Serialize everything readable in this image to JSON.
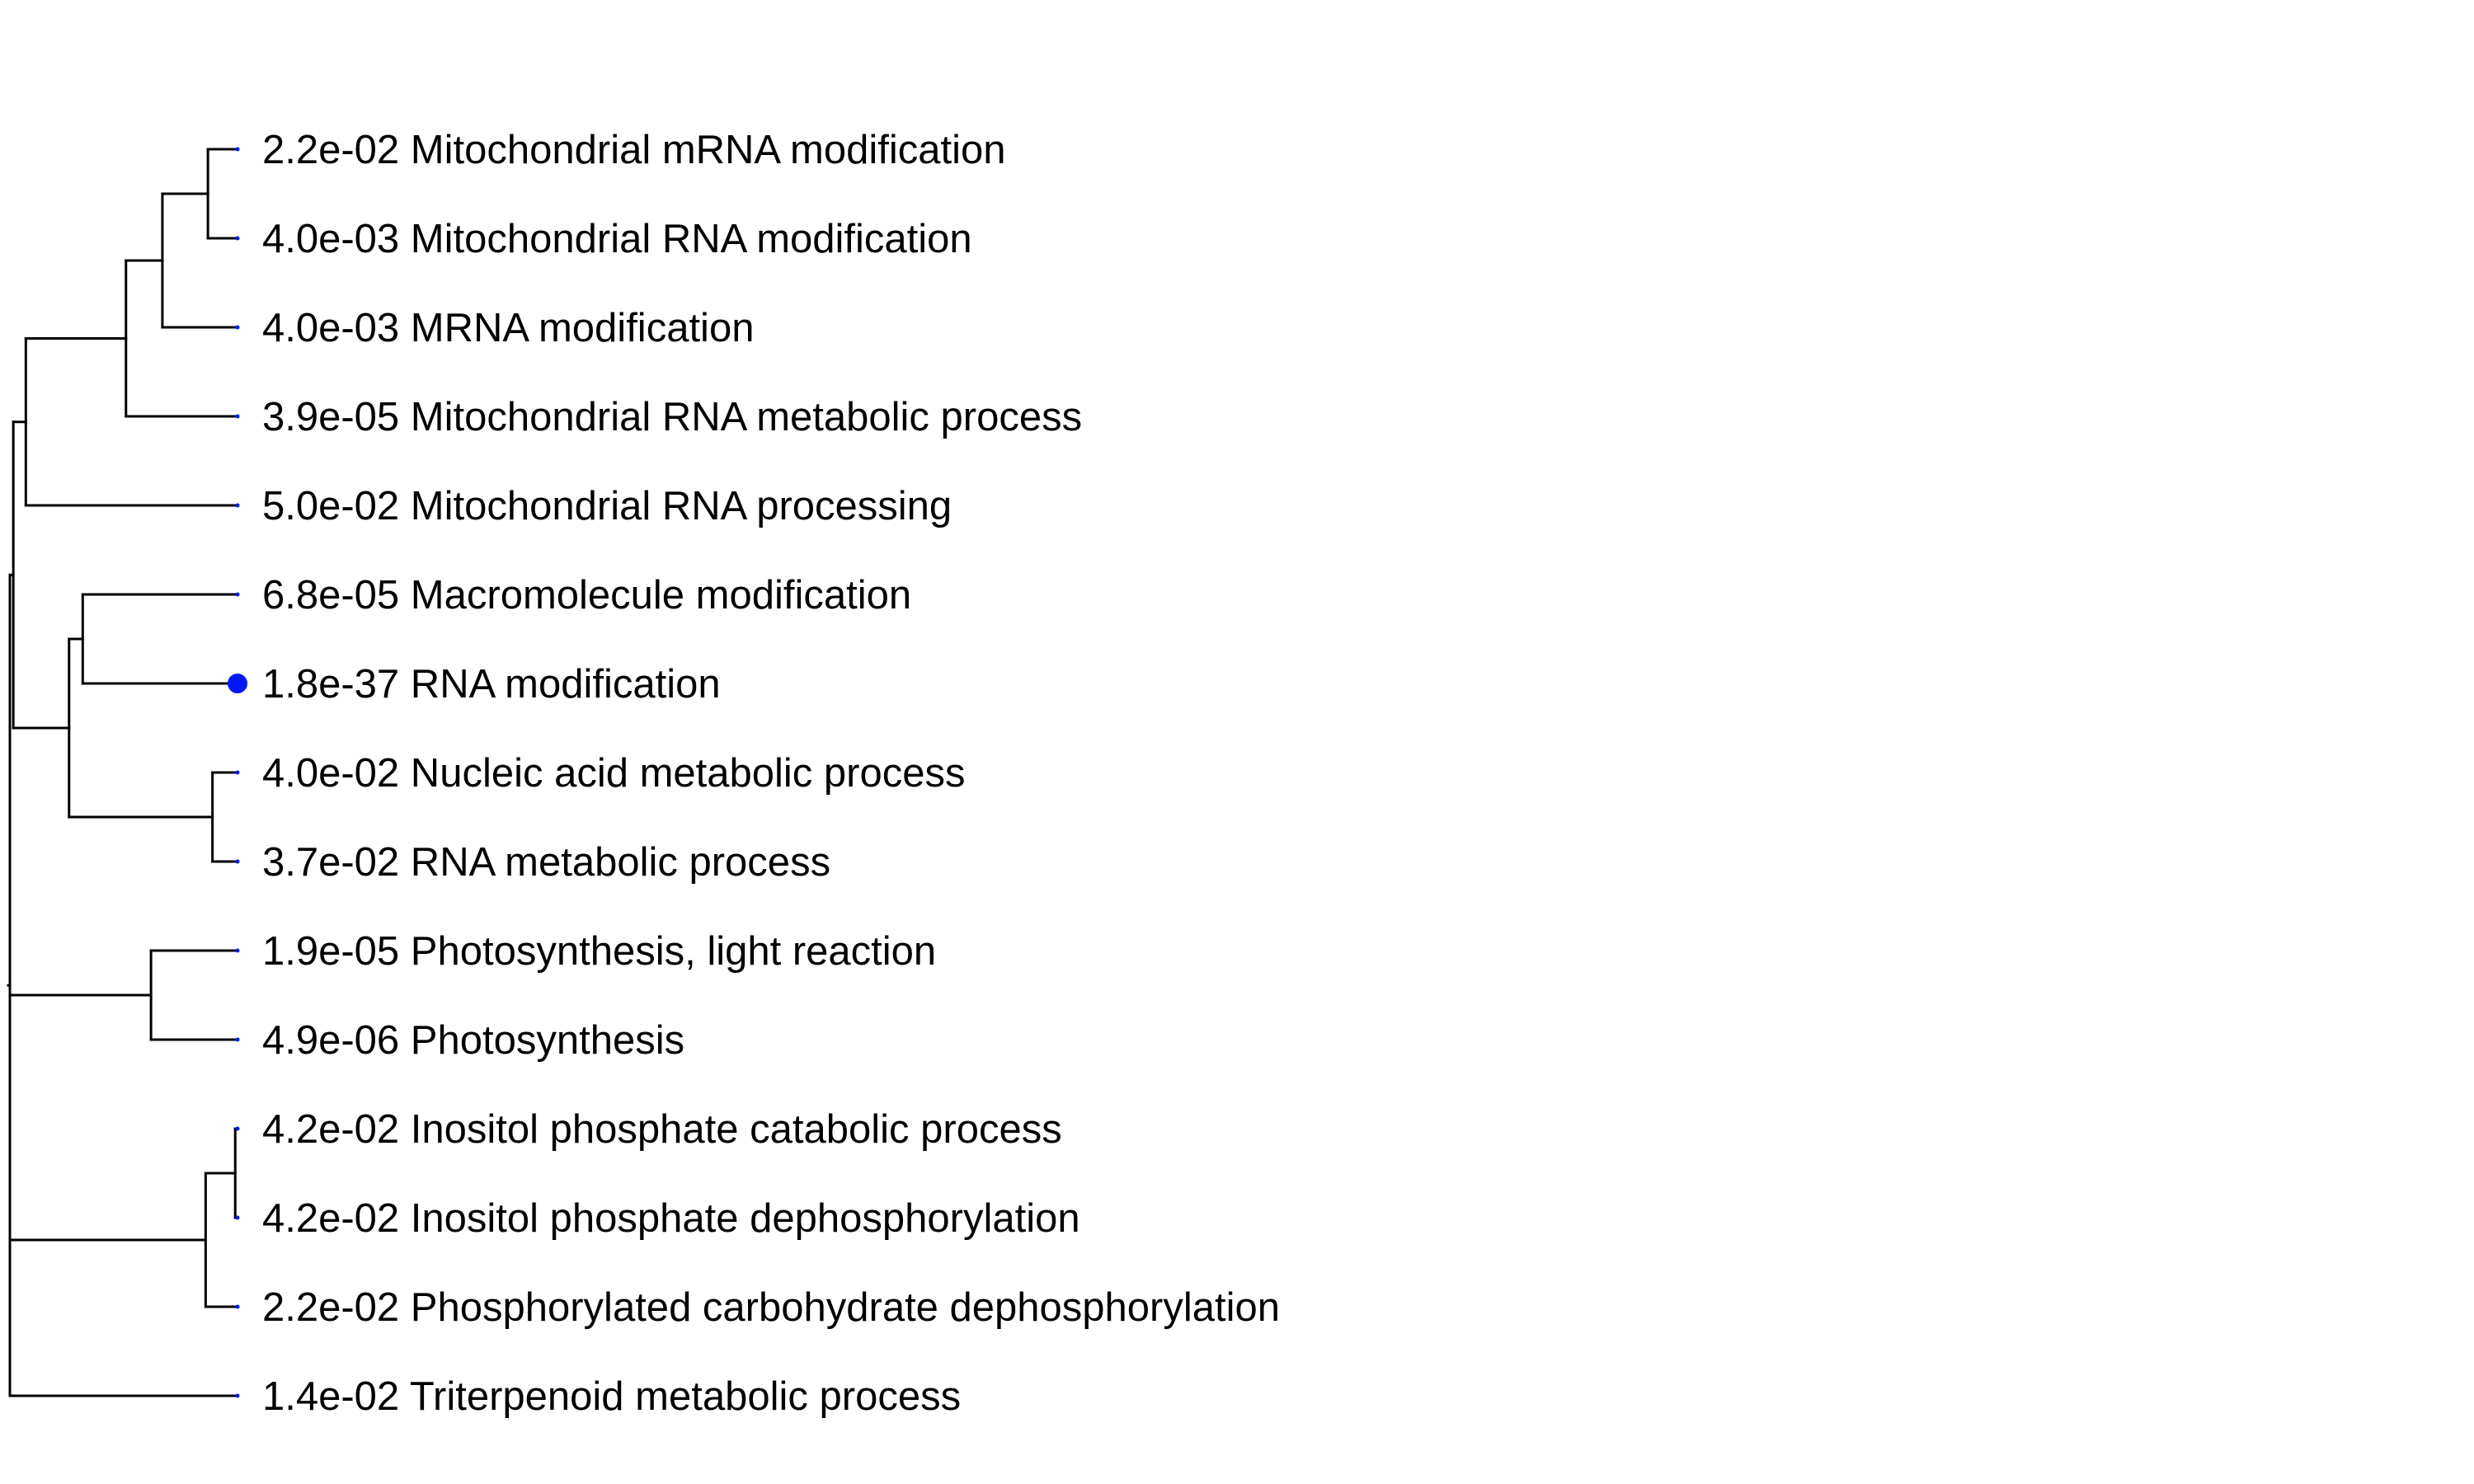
{
  "colors": {
    "branch": "#000000",
    "tip": "#0019f2",
    "text": "#000000",
    "background": "#ffffff"
  },
  "leaves": [
    {
      "id": "L1",
      "pvalue": "2.2e-02",
      "term": "Mitochondrial mRNA modification",
      "p": 0.022
    },
    {
      "id": "L2",
      "pvalue": "4.0e-03",
      "term": "Mitochondrial RNA modification",
      "p": 0.004
    },
    {
      "id": "L3",
      "pvalue": "4.0e-03",
      "term": "MRNA modification",
      "p": 0.004
    },
    {
      "id": "L4",
      "pvalue": "3.9e-05",
      "term": "Mitochondrial RNA metabolic process",
      "p": 3.9e-05
    },
    {
      "id": "L5",
      "pvalue": "5.0e-02",
      "term": "Mitochondrial RNA processing",
      "p": 0.05
    },
    {
      "id": "L6",
      "pvalue": "6.8e-05",
      "term": "Macromolecule modification",
      "p": 6.8e-05
    },
    {
      "id": "L7",
      "pvalue": "1.8e-37",
      "term": "RNA modification",
      "p": 1.8e-37
    },
    {
      "id": "L8",
      "pvalue": "4.0e-02",
      "term": "Nucleic acid metabolic process",
      "p": 0.04
    },
    {
      "id": "L9",
      "pvalue": "3.7e-02",
      "term": "RNA metabolic process",
      "p": 0.037
    },
    {
      "id": "L10",
      "pvalue": "1.9e-05",
      "term": "Photosynthesis, light reaction",
      "p": 1.9e-05
    },
    {
      "id": "L11",
      "pvalue": "4.9e-06",
      "term": "Photosynthesis",
      "p": 4.9e-06
    },
    {
      "id": "L12",
      "pvalue": "4.2e-02",
      "term": "Inositol phosphate catabolic process",
      "p": 0.042
    },
    {
      "id": "L13",
      "pvalue": "4.2e-02",
      "term": "Inositol phosphate dephosphorylation",
      "p": 0.042
    },
    {
      "id": "L14",
      "pvalue": "2.2e-02",
      "term": "Phosphorylated carbohydrate dephosphorylation",
      "p": 0.022
    },
    {
      "id": "L15",
      "pvalue": "1.4e-02",
      "term": "Triterpenoid metabolic process",
      "p": 0.014
    }
  ],
  "tree": {
    "height": 1.0,
    "children": [
      {
        "height": 0.985,
        "children": [
          {
            "height": 0.93,
            "children": [
              {
                "height": 0.49,
                "children": [
                  {
                    "height": 0.33,
                    "children": [
                      {
                        "height": 0.13,
                        "children": [
                          {
                            "leaf": "L1"
                          },
                          {
                            "leaf": "L2"
                          }
                        ]
                      },
                      {
                        "leaf": "L3"
                      }
                    ]
                  },
                  {
                    "leaf": "L4"
                  }
                ]
              },
              {
                "leaf": "L5"
              }
            ]
          },
          {
            "height": 0.74,
            "children": [
              {
                "height": 0.68,
                "children": [
                  {
                    "leaf": "L6"
                  },
                  {
                    "leaf": "L7"
                  }
                ]
              },
              {
                "height": 0.11,
                "children": [
                  {
                    "leaf": "L8"
                  },
                  {
                    "leaf": "L9"
                  }
                ]
              }
            ]
          }
        ]
      },
      {
        "height": 0.38,
        "children": [
          {
            "leaf": "L10"
          },
          {
            "leaf": "L11"
          }
        ]
      },
      {
        "height": 0.14,
        "children": [
          {
            "height": 0.01,
            "children": [
              {
                "leaf": "L12"
              },
              {
                "leaf": "L13"
              }
            ]
          },
          {
            "leaf": "L14"
          }
        ]
      },
      {
        "leaf": "L15"
      }
    ]
  }
}
